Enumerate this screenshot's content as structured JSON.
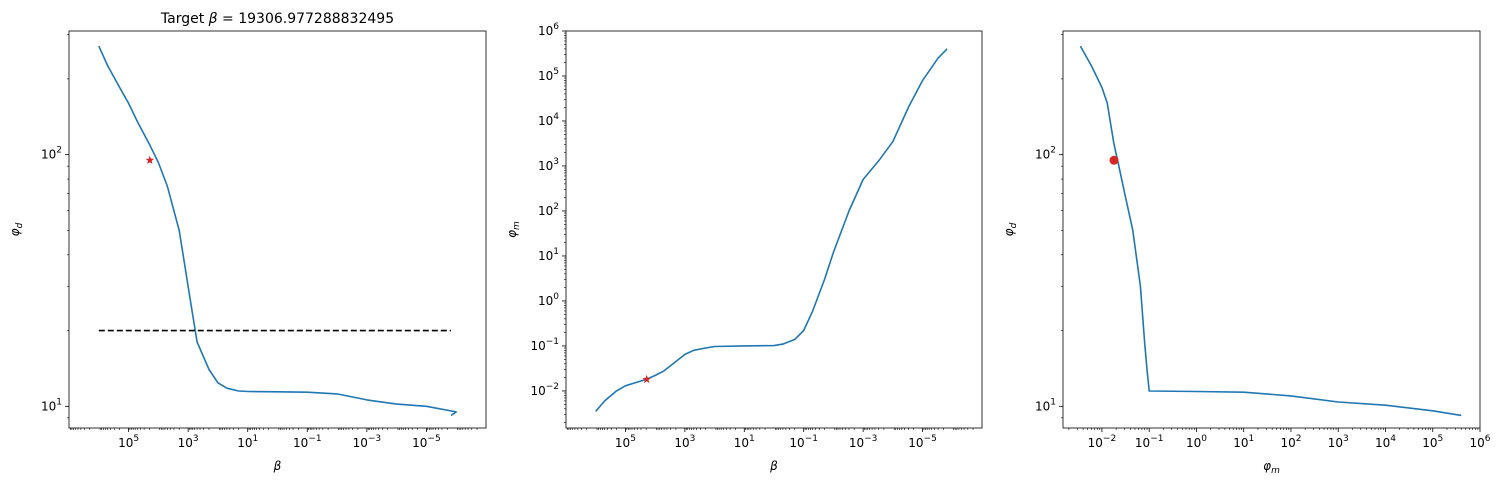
{
  "colors": {
    "line": "#1f77b4",
    "marker": "#d62728",
    "target": "#000000"
  },
  "chart_data": [
    {
      "type": "line",
      "title": "Target β = 19306.977288832495",
      "xlabel": "β",
      "ylabel": "φd",
      "x_scale": "log",
      "x_inverted": true,
      "xlim": [
        10000000.0,
        1e-07
      ],
      "y_scale": "log",
      "ylim": [
        8.2,
        310
      ],
      "x_ticks": [
        {
          "value": 100000.0,
          "label": "10^5"
        },
        {
          "value": 1000.0,
          "label": "10^3"
        },
        {
          "value": 10.0,
          "label": "10^1"
        },
        {
          "value": 0.1,
          "label": "10^-1"
        },
        {
          "value": 0.001,
          "label": "10^-3"
        },
        {
          "value": 1e-05,
          "label": "10^-5"
        }
      ],
      "y_ticks": [
        {
          "value": 10,
          "label": "10^1"
        },
        {
          "value": 100,
          "label": "10^2"
        }
      ],
      "series": [
        {
          "style": "solid",
          "x": [
            1000000.0,
            500000.0,
            200000.0,
            100000.0,
            50000.0,
            20000.0,
            10000.0,
            5000.0,
            2000.0,
            1000.0,
            500.0,
            200.0,
            100.0,
            50.0,
            20.0,
            10.0,
            1,
            0.1,
            0.01,
            0.001,
            0.0001,
            1e-05,
            1e-06,
            1.5e-06
          ],
          "y": [
            270,
            225,
            185,
            160,
            135,
            110,
            93,
            75,
            50,
            30,
            18,
            14,
            12.4,
            11.8,
            11.5,
            11.45,
            11.42,
            11.38,
            11.2,
            10.6,
            10.2,
            10.0,
            9.5,
            9.2
          ]
        },
        {
          "style": "dashed",
          "x": [
            1000000.0,
            1.5e-06
          ],
          "y": [
            20,
            20
          ]
        }
      ],
      "marker": {
        "symbol": "star",
        "x": 19306.977288832495,
        "y": 95
      }
    },
    {
      "type": "line",
      "xlabel": "β",
      "ylabel": "φm",
      "x_scale": "log",
      "x_inverted": true,
      "xlim": [
        10000000.0,
        1e-07
      ],
      "y_scale": "log",
      "ylim": [
        0.0015,
        1000000.0
      ],
      "x_ticks": [
        {
          "value": 100000.0,
          "label": "10^5"
        },
        {
          "value": 1000.0,
          "label": "10^3"
        },
        {
          "value": 10.0,
          "label": "10^1"
        },
        {
          "value": 0.1,
          "label": "10^-1"
        },
        {
          "value": 0.001,
          "label": "10^-3"
        },
        {
          "value": 1e-05,
          "label": "10^-5"
        }
      ],
      "y_ticks": [
        {
          "value": 0.01,
          "label": "10^-2"
        },
        {
          "value": 0.1,
          "label": "10^-1"
        },
        {
          "value": 1,
          "label": "10^0"
        },
        {
          "value": 10,
          "label": "10^1"
        },
        {
          "value": 100,
          "label": "10^2"
        },
        {
          "value": 1000.0,
          "label": "10^3"
        },
        {
          "value": 10000.0,
          "label": "10^4"
        },
        {
          "value": 100000.0,
          "label": "10^5"
        },
        {
          "value": 1000000.0,
          "label": "10^6"
        }
      ],
      "series": [
        {
          "style": "solid",
          "x": [
            1000000.0,
            500000.0,
            200000.0,
            100000.0,
            50000.0,
            20000.0,
            10000.0,
            5000.0,
            2000.0,
            1000.0,
            500.0,
            200.0,
            100.0,
            10.0,
            1,
            0.5,
            0.2,
            0.1,
            0.05,
            0.02,
            0.01,
            0.003,
            0.001,
            0.0003,
            0.0001,
            3e-05,
            1e-05,
            3e-06,
            1.5e-06
          ],
          "y": [
            0.0035,
            0.006,
            0.01,
            0.013,
            0.015,
            0.018,
            0.022,
            0.028,
            0.045,
            0.065,
            0.08,
            0.09,
            0.097,
            0.1,
            0.102,
            0.11,
            0.14,
            0.22,
            0.6,
            3,
            12,
            100,
            500,
            1300,
            3500,
            20000,
            80000,
            250000,
            400000
          ]
        }
      ],
      "marker": {
        "symbol": "star",
        "x": 19306.977288832495,
        "y": 0.018
      }
    },
    {
      "type": "line",
      "xlabel": "φm",
      "ylabel": "φd",
      "x_scale": "log",
      "x_inverted": false,
      "xlim": [
        0.0015,
        1000000.0
      ],
      "y_scale": "log",
      "ylim": [
        8.2,
        310
      ],
      "x_ticks": [
        {
          "value": 0.01,
          "label": "10^-2"
        },
        {
          "value": 0.1,
          "label": "10^-1"
        },
        {
          "value": 1,
          "label": "10^0"
        },
        {
          "value": 10,
          "label": "10^1"
        },
        {
          "value": 100,
          "label": "10^2"
        },
        {
          "value": 1000.0,
          "label": "10^3"
        },
        {
          "value": 10000.0,
          "label": "10^4"
        },
        {
          "value": 100000.0,
          "label": "10^5"
        },
        {
          "value": 1000000.0,
          "label": "10^6"
        }
      ],
      "y_ticks": [
        {
          "value": 10,
          "label": "10^1"
        },
        {
          "value": 100,
          "label": "10^2"
        }
      ],
      "series": [
        {
          "style": "solid",
          "x": [
            0.0035,
            0.006,
            0.01,
            0.013,
            0.015,
            0.018,
            0.022,
            0.028,
            0.045,
            0.065,
            0.08,
            0.09,
            0.1,
            1,
            10,
            100,
            1000.0,
            10000.0,
            100000.0,
            400000.0
          ],
          "y": [
            270,
            225,
            185,
            160,
            135,
            110,
            93,
            75,
            50,
            30,
            18,
            14,
            11.5,
            11.45,
            11.38,
            11.0,
            10.4,
            10.1,
            9.6,
            9.2
          ]
        }
      ],
      "marker": {
        "symbol": "circle",
        "x": 0.018,
        "y": 95
      }
    }
  ]
}
